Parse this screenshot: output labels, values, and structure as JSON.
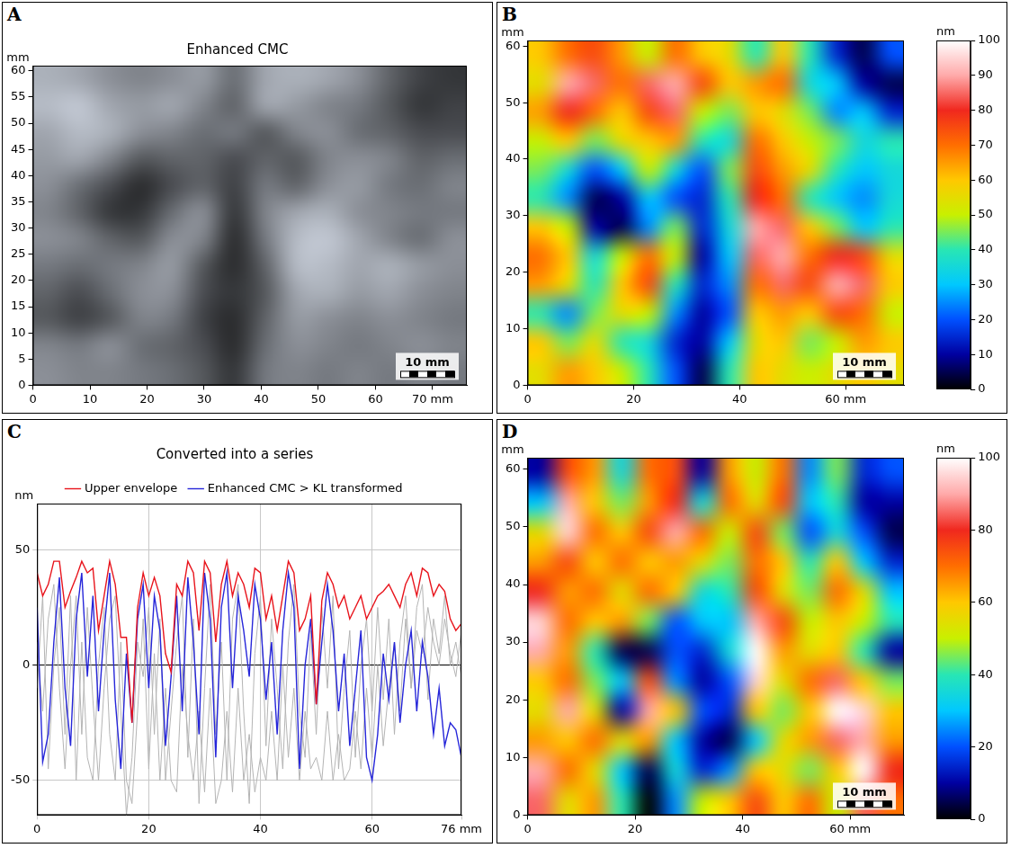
{
  "chart_data": [
    {
      "panel": "A",
      "type": "heatmap",
      "title": "Enhanced CMC",
      "y_label": "mm",
      "color": "gray",
      "xlim": [
        0,
        76
      ],
      "ylim": [
        0,
        61
      ],
      "xticks": [
        0,
        10,
        20,
        30,
        40,
        50,
        60,
        {
          "value": 70,
          "label": "70 mm"
        }
      ],
      "yticks": [
        0,
        5,
        10,
        15,
        20,
        25,
        30,
        35,
        40,
        45,
        50,
        55,
        60
      ],
      "grid": false,
      "annotation": "10 mm",
      "zlim": [
        0,
        100
      ],
      "cells": [
        [
          75,
          70,
          60,
          55,
          60,
          65,
          45,
          70,
          75,
          70,
          60,
          40,
          25,
          20
        ],
        [
          80,
          85,
          70,
          65,
          70,
          55,
          40,
          70,
          65,
          55,
          50,
          35,
          20,
          25
        ],
        [
          70,
          80,
          75,
          60,
          55,
          45,
          50,
          35,
          55,
          60,
          45,
          40,
          30,
          30
        ],
        [
          65,
          70,
          55,
          35,
          40,
          40,
          30,
          40,
          35,
          55,
          60,
          55,
          40,
          45
        ],
        [
          60,
          45,
          30,
          15,
          30,
          40,
          25,
          50,
          40,
          60,
          65,
          50,
          45,
          55
        ],
        [
          55,
          40,
          20,
          20,
          45,
          60,
          20,
          55,
          70,
          75,
          60,
          55,
          50,
          50
        ],
        [
          60,
          55,
          40,
          35,
          60,
          55,
          15,
          50,
          80,
          85,
          70,
          55,
          45,
          60
        ],
        [
          50,
          45,
          50,
          55,
          65,
          35,
          15,
          40,
          80,
          80,
          70,
          75,
          65,
          60
        ],
        [
          40,
          30,
          45,
          60,
          60,
          30,
          20,
          35,
          70,
          75,
          65,
          70,
          60,
          55
        ],
        [
          35,
          25,
          35,
          55,
          50,
          25,
          15,
          40,
          65,
          60,
          55,
          60,
          55,
          50
        ],
        [
          55,
          50,
          60,
          45,
          40,
          30,
          15,
          45,
          60,
          55,
          50,
          55,
          60,
          55
        ],
        [
          60,
          55,
          55,
          50,
          45,
          35,
          20,
          50,
          55,
          50,
          55,
          50,
          55,
          50
        ]
      ]
    },
    {
      "panel": "B",
      "type": "heatmap",
      "y_label": "mm",
      "xlim": [
        0,
        71
      ],
      "ylim": [
        0,
        61
      ],
      "xticks": [
        0,
        20,
        40,
        {
          "value": 60,
          "label": "60 mm"
        }
      ],
      "yticks": [
        0,
        10,
        20,
        30,
        40,
        50,
        60
      ],
      "grid": false,
      "annotation": "10 mm",
      "colorbar": {
        "label": "nm",
        "range": [
          0,
          100
        ],
        "ticks": [
          0,
          10,
          20,
          30,
          40,
          50,
          60,
          70,
          80,
          90,
          100
        ]
      },
      "cells": [
        [
          60,
          70,
          75,
          65,
          50,
          70,
          60,
          55,
          40,
          60,
          40,
          15,
          5,
          20
        ],
        [
          55,
          90,
          85,
          70,
          85,
          90,
          75,
          60,
          65,
          70,
          35,
          30,
          10,
          5
        ],
        [
          65,
          80,
          70,
          60,
          75,
          85,
          50,
          45,
          60,
          55,
          45,
          25,
          30,
          15
        ],
        [
          50,
          60,
          45,
          55,
          60,
          65,
          40,
          35,
          70,
          60,
          50,
          45,
          35,
          40
        ],
        [
          45,
          35,
          20,
          30,
          50,
          35,
          20,
          45,
          75,
          65,
          55,
          40,
          30,
          35
        ],
        [
          40,
          25,
          5,
          10,
          30,
          20,
          15,
          40,
          80,
          70,
          40,
          30,
          25,
          35
        ],
        [
          60,
          50,
          10,
          5,
          25,
          45,
          15,
          35,
          90,
          85,
          60,
          45,
          30,
          40
        ],
        [
          70,
          60,
          35,
          50,
          70,
          50,
          10,
          30,
          85,
          90,
          70,
          80,
          75,
          55
        ],
        [
          65,
          55,
          40,
          60,
          75,
          40,
          15,
          25,
          70,
          85,
          75,
          90,
          85,
          60
        ],
        [
          40,
          25,
          45,
          55,
          50,
          25,
          10,
          20,
          60,
          65,
          60,
          75,
          70,
          50
        ],
        [
          60,
          45,
          55,
          40,
          35,
          15,
          10,
          30,
          55,
          60,
          45,
          50,
          65,
          60
        ],
        [
          55,
          65,
          60,
          50,
          40,
          20,
          5,
          40,
          60,
          55,
          50,
          55,
          60,
          55
        ]
      ]
    },
    {
      "panel": "C",
      "type": "line",
      "title": "Converted into a series",
      "y_label": "nm",
      "x": [
        0,
        1,
        2,
        3,
        4,
        5,
        6,
        7,
        8,
        9,
        10,
        11,
        12,
        13,
        14,
        15,
        16,
        17,
        18,
        19,
        20,
        21,
        22,
        23,
        24,
        25,
        26,
        27,
        28,
        29,
        30,
        31,
        32,
        33,
        34,
        35,
        36,
        37,
        38,
        39,
        40,
        41,
        42,
        43,
        44,
        45,
        46,
        47,
        48,
        49,
        50,
        51,
        52,
        53,
        54,
        55,
        56,
        57,
        58,
        59,
        60,
        61,
        62,
        63,
        64,
        65,
        66,
        67,
        68,
        69,
        70,
        71,
        72,
        73,
        74,
        75,
        76
      ],
      "series": [
        {
          "name": "Upper envelope",
          "color": "#e8141c",
          "values": [
            40,
            30,
            35,
            45,
            45,
            25,
            32,
            38,
            45,
            40,
            42,
            15,
            30,
            45,
            35,
            12,
            12,
            -25,
            25,
            40,
            30,
            38,
            30,
            5,
            -3,
            35,
            30,
            45,
            40,
            15,
            45,
            40,
            10,
            35,
            45,
            30,
            40,
            35,
            25,
            42,
            40,
            20,
            30,
            15,
            30,
            45,
            40,
            15,
            20,
            30,
            -17,
            28,
            40,
            35,
            25,
            30,
            20,
            25,
            30,
            20,
            25,
            30,
            32,
            35,
            30,
            25,
            35,
            40,
            30,
            42,
            40,
            30,
            35,
            32,
            20,
            15,
            18
          ]
        },
        {
          "name": "Enhanced CMC > KL transformed",
          "color": "#2626d9",
          "values": [
            25,
            -42,
            -30,
            10,
            38,
            -10,
            -35,
            20,
            40,
            -5,
            30,
            -20,
            15,
            40,
            -15,
            -45,
            5,
            -25,
            20,
            35,
            -10,
            30,
            15,
            -35,
            -5,
            30,
            -20,
            38,
            10,
            -30,
            40,
            20,
            -40,
            25,
            40,
            -10,
            30,
            15,
            -5,
            35,
            20,
            -15,
            10,
            -30,
            15,
            40,
            25,
            -45,
            0,
            20,
            -17,
            10,
            35,
            15,
            -20,
            5,
            -35,
            -10,
            15,
            -40,
            -50,
            -30,
            5,
            -15,
            10,
            -25,
            0,
            15,
            -20,
            10,
            -5,
            -30,
            -10,
            -35,
            -25,
            -28,
            -40
          ]
        },
        {
          "color": "#b4b4b4",
          "values": [
            10,
            -20,
            20,
            35,
            -10,
            -45,
            0,
            30,
            -30,
            25,
            -15,
            -50,
            -10,
            20,
            30,
            -20,
            -65,
            -40,
            10,
            -5,
            25,
            -30,
            20,
            -50,
            -20,
            10,
            30,
            -40,
            20,
            -60,
            -10,
            35,
            -30,
            10,
            -50,
            20,
            35,
            -20,
            -60,
            5,
            30,
            -35,
            20,
            -10,
            -45,
            10,
            35,
            -20,
            -40,
            15,
            -30,
            25,
            -10,
            30,
            -45,
            -10,
            15,
            -40,
            0,
            20,
            -20,
            25,
            -15,
            20,
            -30,
            10,
            30,
            -10,
            25,
            35,
            -15,
            20,
            5,
            30,
            0,
            10,
            -5
          ]
        },
        {
          "color": "#b4b4b4",
          "values": [
            -10,
            30,
            -45,
            0,
            25,
            -30,
            30,
            -50,
            10,
            -40,
            -50,
            0,
            25,
            -30,
            -50,
            10,
            -50,
            -60,
            -20,
            20,
            -45,
            5,
            -50,
            -10,
            -50,
            -55,
            0,
            -30,
            -50,
            -20,
            -55,
            -10,
            -60,
            -50,
            -20,
            -55,
            -10,
            -50,
            -30,
            -55,
            -40,
            -50,
            -20,
            -50,
            0,
            -40,
            -10,
            -50,
            -20,
            -45,
            -40,
            -50,
            -20,
            -50,
            -30,
            -50,
            -45,
            -20,
            -45,
            -10,
            -40,
            0,
            -35,
            -10,
            10,
            -20,
            20,
            -10,
            15,
            5,
            25,
            10,
            0,
            20,
            5,
            -5,
            15
          ]
        }
      ],
      "xlim": [
        0,
        76
      ],
      "xticks": [
        0,
        20,
        40,
        60,
        {
          "value": 76,
          "label": "76 mm"
        }
      ],
      "ylim": [
        -65,
        70
      ],
      "yticks": [
        -50,
        0,
        50
      ],
      "grid": true,
      "legend": "top"
    },
    {
      "panel": "D",
      "type": "heatmap",
      "y_label": "mm",
      "xlim": [
        0,
        70
      ],
      "ylim": [
        0,
        62
      ],
      "xticks": [
        0,
        20,
        40,
        {
          "value": 60,
          "label": "60 mm"
        }
      ],
      "yticks": [
        0,
        10,
        20,
        30,
        40,
        50,
        60
      ],
      "grid": false,
      "annotation": "10 mm",
      "colorbar": {
        "label": "nm",
        "range": [
          0,
          100
        ],
        "ticks": [
          0,
          20,
          40,
          60,
          80,
          100
        ]
      },
      "cells": [
        [
          10,
          75,
          65,
          35,
          70,
          75,
          10,
          65,
          50,
          70,
          25,
          45,
          15,
          20
        ],
        [
          30,
          90,
          60,
          45,
          65,
          80,
          35,
          70,
          55,
          75,
          30,
          40,
          10,
          10
        ],
        [
          55,
          95,
          70,
          60,
          75,
          90,
          70,
          50,
          75,
          45,
          20,
          35,
          20,
          5
        ],
        [
          65,
          75,
          60,
          70,
          60,
          65,
          55,
          45,
          70,
          60,
          40,
          60,
          30,
          15
        ],
        [
          80,
          65,
          70,
          55,
          70,
          60,
          35,
          40,
          75,
          55,
          45,
          70,
          55,
          30
        ],
        [
          95,
          70,
          60,
          65,
          45,
          20,
          30,
          30,
          90,
          75,
          50,
          60,
          50,
          40
        ],
        [
          90,
          65,
          40,
          5,
          5,
          20,
          15,
          35,
          100,
          65,
          55,
          60,
          40,
          10
        ],
        [
          60,
          70,
          45,
          30,
          75,
          25,
          10,
          20,
          95,
          55,
          70,
          85,
          60,
          45
        ],
        [
          55,
          90,
          55,
          10,
          90,
          60,
          20,
          15,
          60,
          45,
          60,
          100,
          95,
          60
        ],
        [
          65,
          60,
          70,
          55,
          65,
          30,
          10,
          5,
          30,
          55,
          65,
          85,
          90,
          65
        ],
        [
          90,
          70,
          55,
          30,
          5,
          35,
          15,
          25,
          60,
          55,
          45,
          60,
          100,
          80
        ],
        [
          85,
          55,
          65,
          40,
          0,
          25,
          50,
          60,
          75,
          60,
          70,
          50,
          85,
          70
        ]
      ]
    }
  ]
}
